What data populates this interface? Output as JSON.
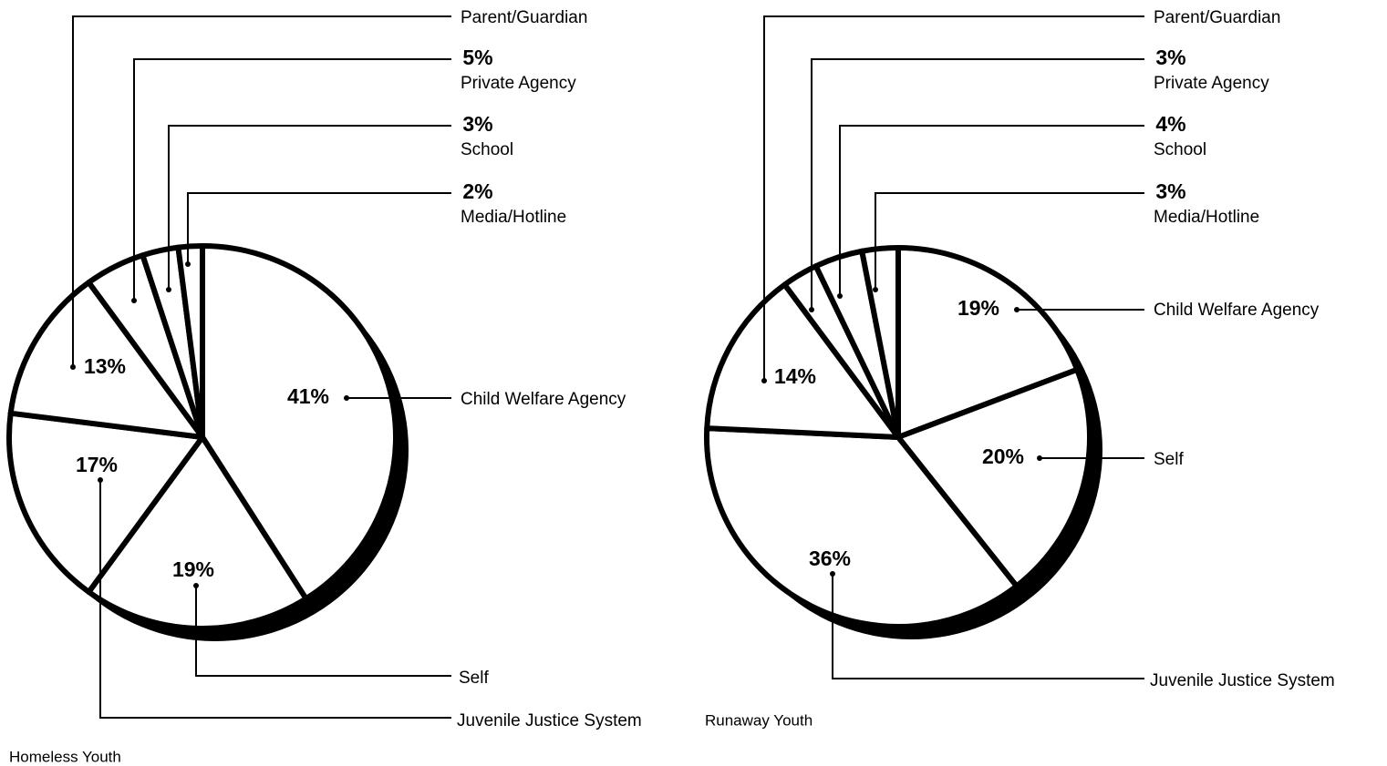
{
  "chart_data": [
    {
      "type": "pie",
      "title": "Homeless Youth",
      "categories": [
        "Child Welfare Agency",
        "Self",
        "Juvenile Justice System",
        "Parent/Guardian",
        "Private Agency",
        "School",
        "Media/Hotline"
      ],
      "values": [
        41,
        19,
        17,
        13,
        5,
        3,
        2
      ],
      "value_labels": [
        "41%",
        "19%",
        "17%",
        "13%",
        "5%",
        "3%",
        "2%"
      ]
    },
    {
      "type": "pie",
      "title": "Runaway Youth",
      "categories": [
        "Child Welfare Agency",
        "Self",
        "Juvenile Justice System",
        "Parent/Guardian",
        "Private Agency",
        "School",
        "Media/Hotline"
      ],
      "values": [
        19,
        20,
        36,
        14,
        3,
        4,
        3
      ],
      "value_labels": [
        "19%",
        "20%",
        "36%",
        "14%",
        "3%",
        "4%",
        "3%"
      ]
    }
  ]
}
